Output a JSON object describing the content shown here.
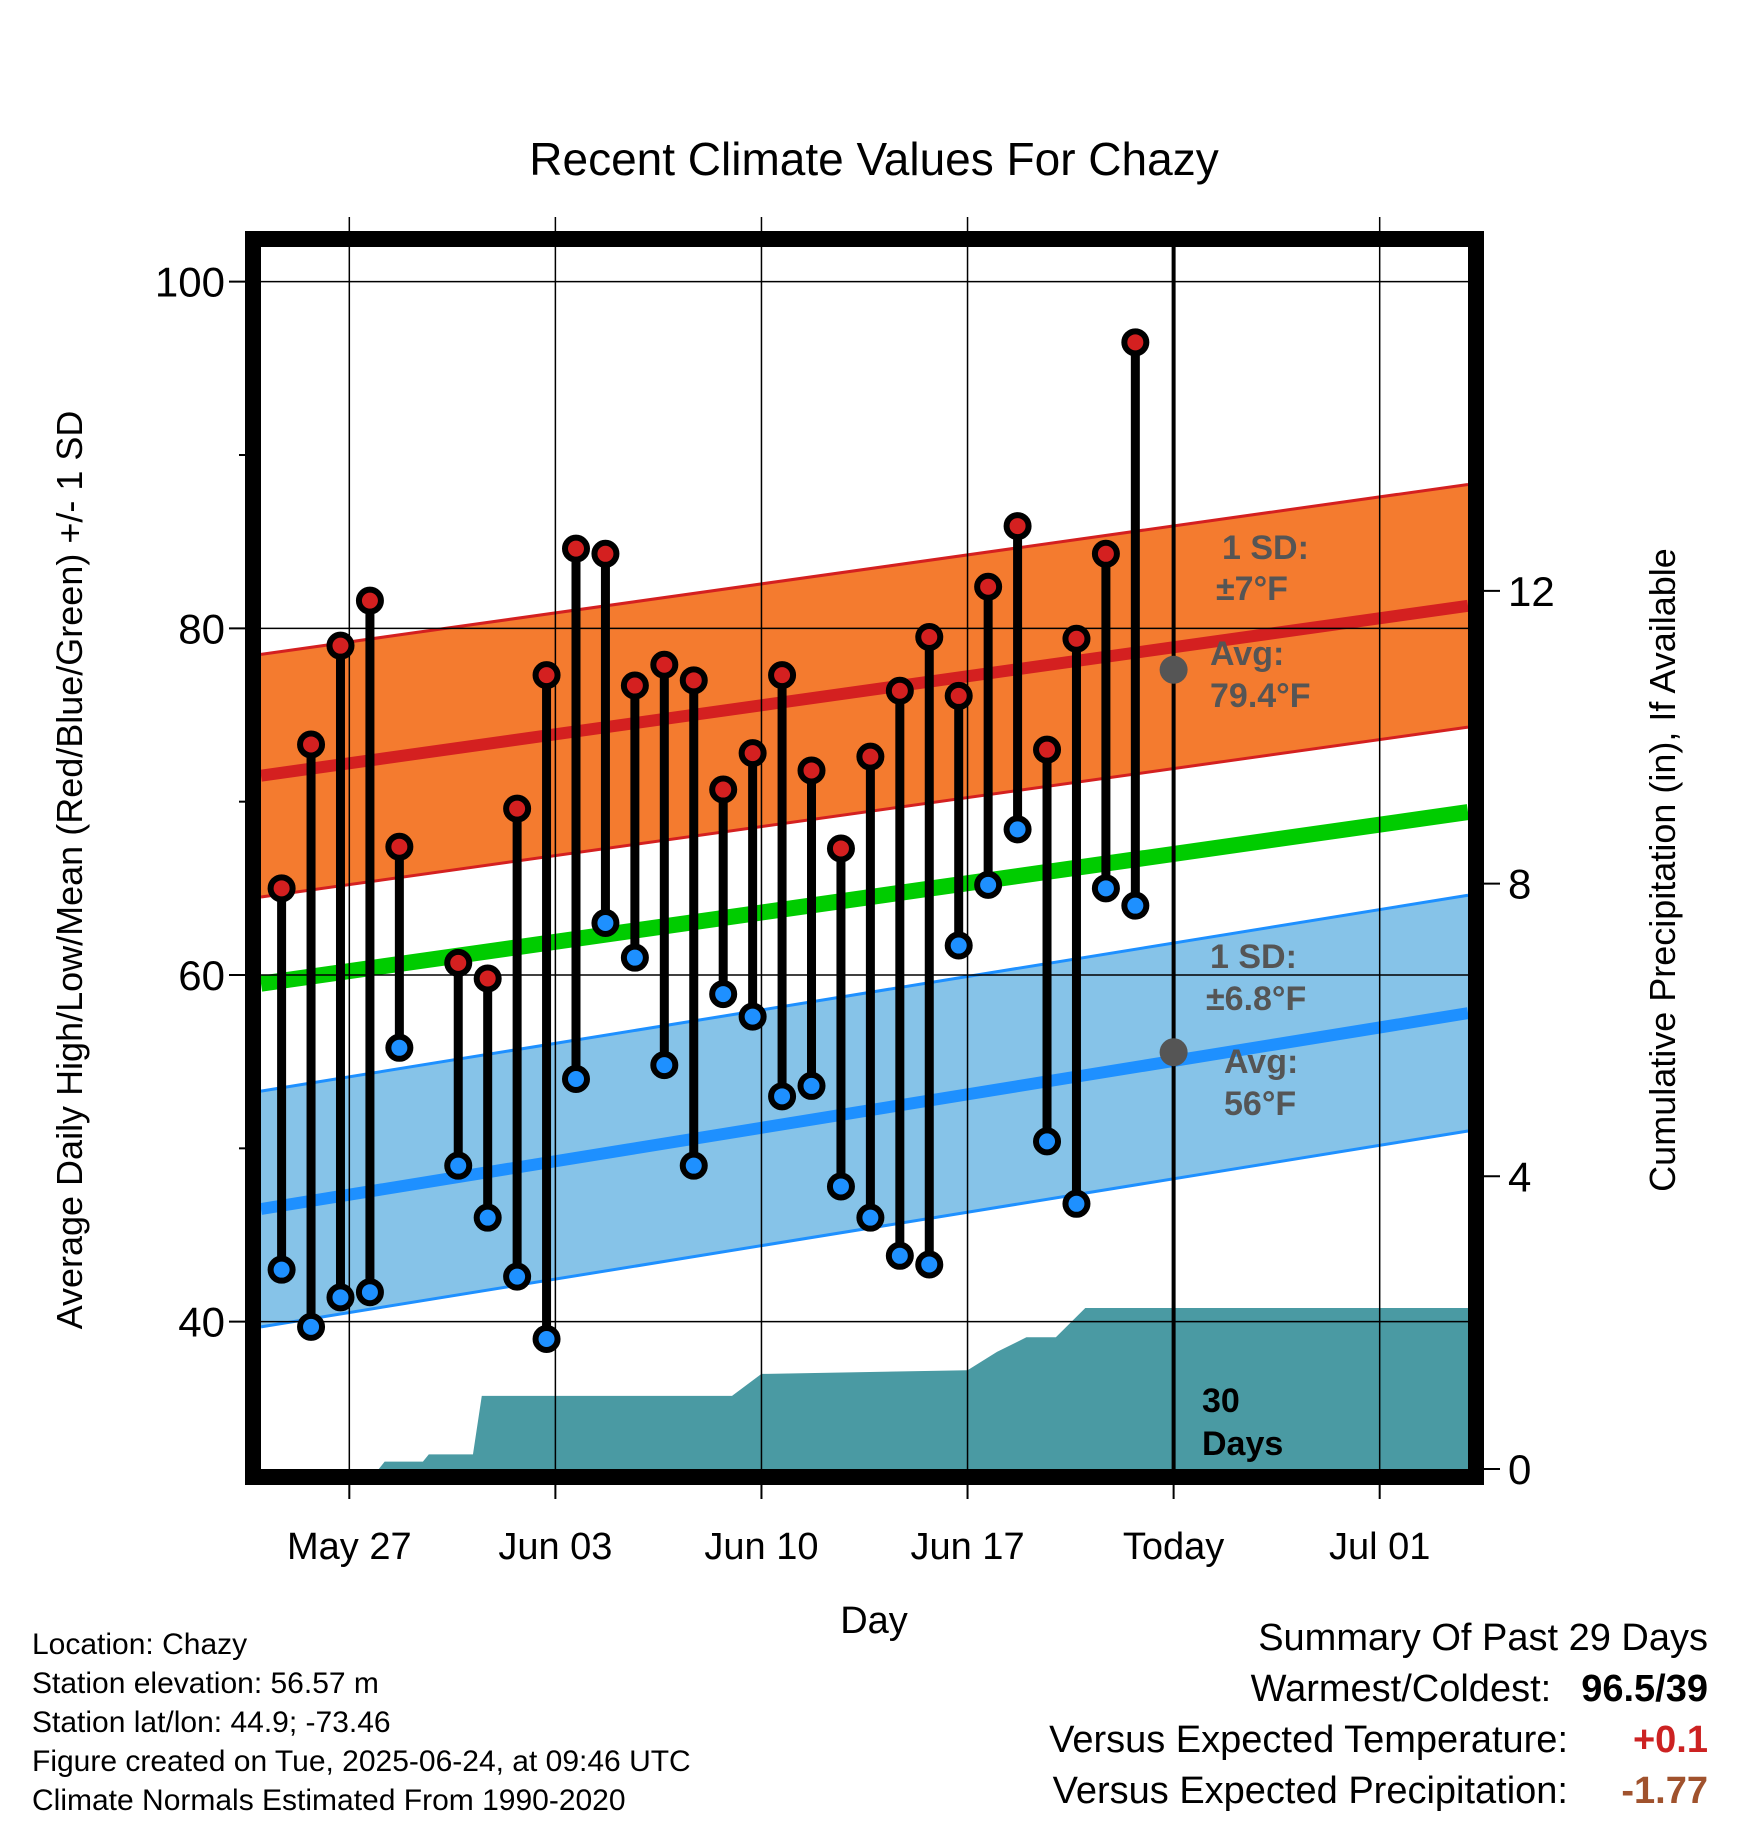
{
  "title": "Recent Climate Values For Chazy",
  "xlabel": "Day",
  "ylabel_left": "Average Daily High/Low/Mean (Red/Blue/Green) +/- 1 SD",
  "ylabel_right": "Cumulative Precipitation (in), If Available",
  "meta": {
    "location": "Location: Chazy",
    "elevation": "Station elevation: 56.57 m",
    "latlon": "Station lat/lon: 44.9; -73.46",
    "created": "Figure created on Tue, 2025-06-24, at 09:46 UTC",
    "normals": "Climate Normals Estimated From 1990-2020"
  },
  "summary": {
    "heading": "Summary Of Past 29 Days",
    "warm_cold_label": "Warmest/Coldest:",
    "warm_cold_value": "96.5/39",
    "temp_label": "Versus Expected Temperature:",
    "temp_value": "+0.1",
    "precip_label": "Versus Expected Precipitation:",
    "precip_value": "-1.77",
    "temp_color": "#cc2222",
    "precip_color": "#a0522d"
  },
  "annotations": {
    "high_sd_1": "1 SD:",
    "high_sd_2": "±7°F",
    "high_avg_1": "Avg:",
    "high_avg_2": "79.4°F",
    "low_sd_1": "1 SD:",
    "low_sd_2": "±6.8°F",
    "low_avg_1": "Avg:",
    "low_avg_2": "56°F",
    "days_1": "30",
    "days_2": "Days"
  },
  "chart_data": {
    "type": "line",
    "x_ticks": [
      "May 27",
      "Jun 03",
      "Jun 10",
      "Jun 17",
      "Today",
      "Jul 01"
    ],
    "x_tick_days": [
      3,
      10,
      17,
      24,
      31,
      38
    ],
    "x_range_days": [
      0,
      41
    ],
    "today_day": 31,
    "ylim_left": [
      31.5,
      102
    ],
    "y_ticks_left": [
      40,
      60,
      80,
      100
    ],
    "ylim_right": [
      0,
      16.7
    ],
    "y_ticks_right": [
      0,
      4,
      8,
      12
    ],
    "colors": {
      "high_band": "#f47b2f",
      "high_line": "#d42020",
      "mean_line": "#00cc00",
      "low_band": "#86c3e8",
      "low_line": "#1e90ff",
      "precip": "#4a9aa3",
      "high_dot": "#d42020",
      "low_dot": "#1e90ff"
    },
    "normals": {
      "days": [
        0,
        41
      ],
      "high_avg": [
        71.5,
        81.3
      ],
      "high_sd": 7,
      "low_avg": [
        46.5,
        57.8
      ],
      "low_sd": 6.8,
      "mean": [
        59.5,
        69.4
      ]
    },
    "observed": [
      {
        "day": 0.7,
        "high": 65,
        "low": 43
      },
      {
        "day": 1.7,
        "high": 73.3,
        "low": 39.7
      },
      {
        "day": 2.7,
        "high": 79,
        "low": 41.4
      },
      {
        "day": 3.7,
        "high": 81.6,
        "low": 41.7
      },
      {
        "day": 4.7,
        "high": 67.4,
        "low": 55.8
      },
      {
        "day": 6.7,
        "high": 60.7,
        "low": 49
      },
      {
        "day": 7.7,
        "high": 59.8,
        "low": 46
      },
      {
        "day": 8.7,
        "high": 69.6,
        "low": 42.6
      },
      {
        "day": 9.7,
        "high": 77.3,
        "low": 39
      },
      {
        "day": 10.7,
        "high": 84.6,
        "low": 54
      },
      {
        "day": 11.7,
        "high": 84.3,
        "low": 63
      },
      {
        "day": 12.7,
        "high": 76.7,
        "low": 61
      },
      {
        "day": 13.7,
        "high": 77.9,
        "low": 54.8
      },
      {
        "day": 14.7,
        "high": 77,
        "low": 49
      },
      {
        "day": 15.7,
        "high": 70.7,
        "low": 58.9
      },
      {
        "day": 16.7,
        "high": 72.8,
        "low": 57.6
      },
      {
        "day": 17.7,
        "high": 77.3,
        "low": 53
      },
      {
        "day": 18.7,
        "high": 71.8,
        "low": 53.6
      },
      {
        "day": 19.7,
        "high": 67.3,
        "low": 47.8
      },
      {
        "day": 20.7,
        "high": 72.6,
        "low": 46
      },
      {
        "day": 21.7,
        "high": 76.4,
        "low": 43.8
      },
      {
        "day": 22.7,
        "high": 79.5,
        "low": 43.3
      },
      {
        "day": 23.7,
        "high": 76.1,
        "low": 61.7
      },
      {
        "day": 24.7,
        "high": 82.4,
        "low": 65.2
      },
      {
        "day": 25.7,
        "high": 85.9,
        "low": 68.4
      },
      {
        "day": 26.7,
        "high": 73,
        "low": 50.4
      },
      {
        "day": 27.7,
        "high": 79.4,
        "low": 46.8
      },
      {
        "day": 28.7,
        "high": 84.3,
        "low": 65
      },
      {
        "day": 29.7,
        "high": 96.5,
        "low": 64
      }
    ],
    "precip_cumulative": {
      "day": [
        0,
        4,
        4.2,
        5.5,
        5.7,
        7.2,
        7.5,
        16,
        17,
        17.2,
        24,
        25,
        26,
        27,
        28,
        29,
        30,
        41
      ],
      "inches": [
        0,
        0,
        0.1,
        0.1,
        0.2,
        0.2,
        1,
        1,
        1.3,
        1.3,
        1.35,
        1.6,
        1.8,
        1.8,
        2.2,
        2.2,
        2.2,
        2.2
      ]
    }
  }
}
